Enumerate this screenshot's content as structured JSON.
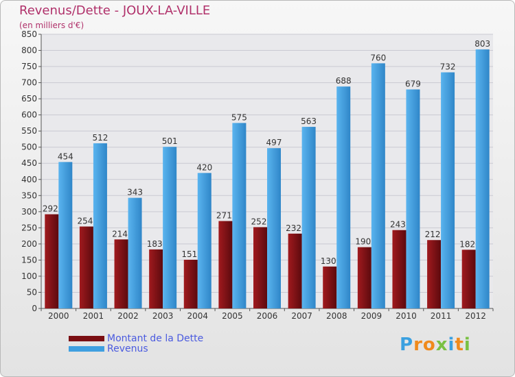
{
  "chart_data": {
    "type": "bar",
    "title": "Revenus/Dette - JOUX-LA-VILLE",
    "subtitle": "(en milliers d'€)",
    "categories": [
      "2000",
      "2001",
      "2002",
      "2003",
      "2004",
      "2005",
      "2006",
      "2007",
      "2008",
      "2009",
      "2010",
      "2011",
      "2012"
    ],
    "series": [
      {
        "name": "Montant de la Dette",
        "color": "#7a0e12",
        "values": [
          292,
          254,
          214,
          183,
          151,
          271,
          252,
          232,
          130,
          190,
          243,
          212,
          182
        ]
      },
      {
        "name": "Revenus",
        "color": "#3f9fe0",
        "values": [
          454,
          512,
          343,
          501,
          420,
          575,
          497,
          563,
          688,
          760,
          679,
          732,
          803
        ]
      }
    ],
    "ylim": [
      0,
      850
    ],
    "yticks": [
      0,
      50,
      100,
      150,
      200,
      250,
      300,
      350,
      400,
      450,
      500,
      550,
      600,
      650,
      700,
      750,
      800,
      850
    ],
    "grid": true,
    "legend": "bottom-left"
  },
  "logo": {
    "letters": [
      "P",
      "r",
      "o",
      "x",
      "i",
      "t",
      "i"
    ],
    "colors": [
      "#3aa0e0",
      "#f08a1c",
      "#f08a1c",
      "#7ac143",
      "#3aa0e0",
      "#f08a1c",
      "#7ac143"
    ]
  }
}
